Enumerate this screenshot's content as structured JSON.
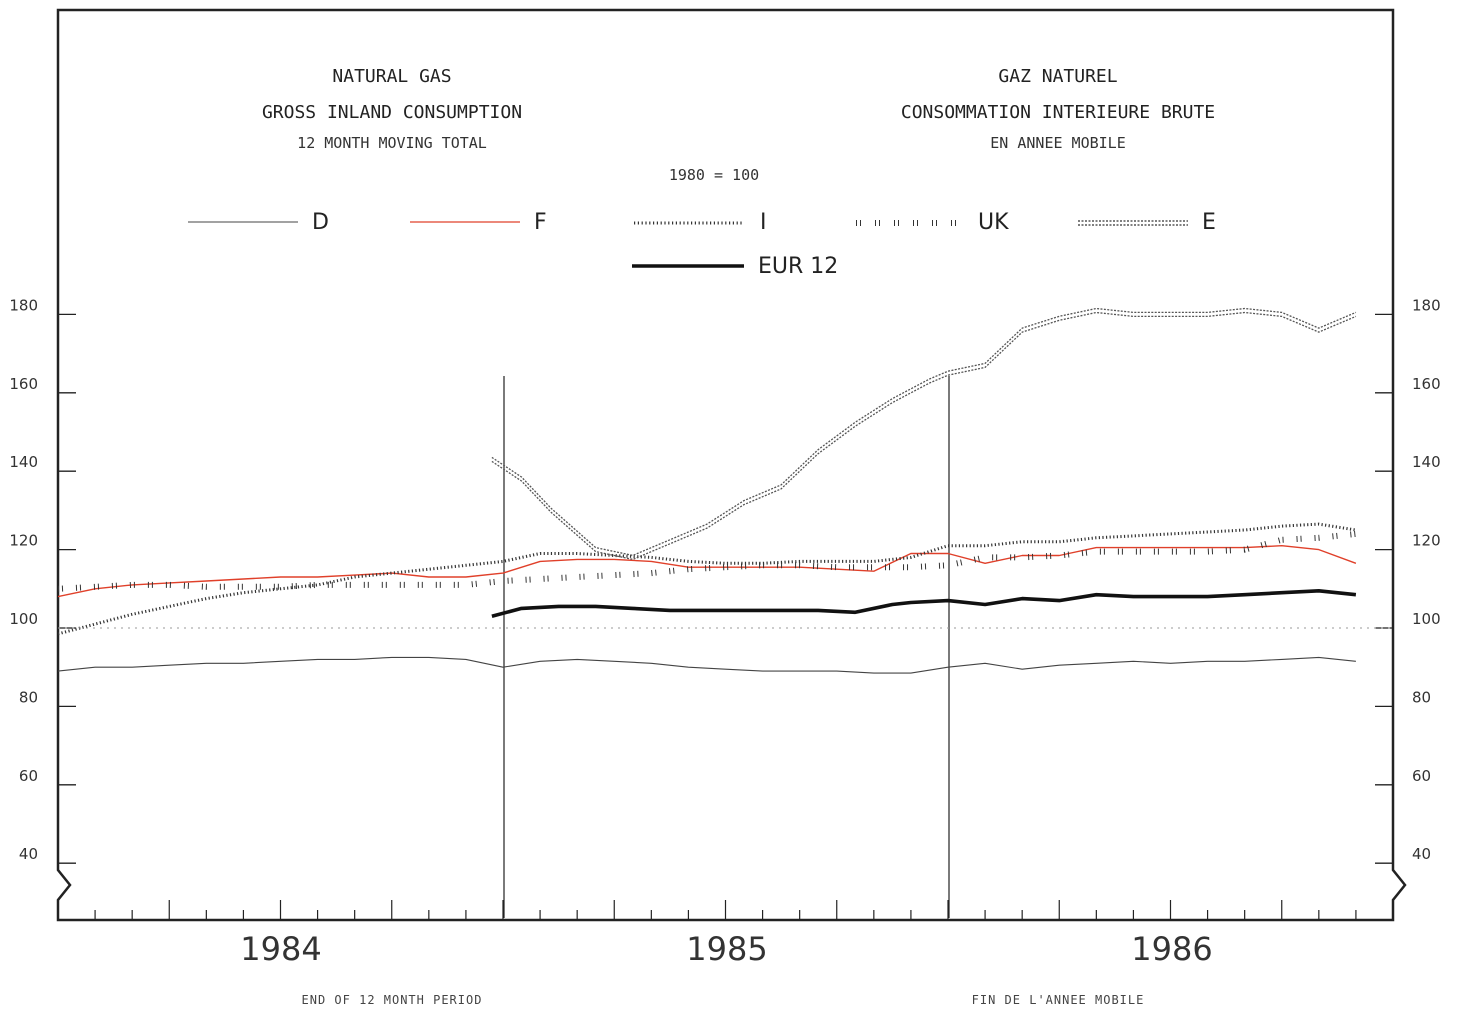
{
  "titles": {
    "en_line1": "NATURAL GAS",
    "en_line2": "GROSS INLAND CONSUMPTION",
    "en_line3": "12 MONTH MOVING TOTAL",
    "fr_line1": "GAZ NATUREL",
    "fr_line2": "CONSOMMATION INTERIEURE BRUTE",
    "fr_line3": "EN ANNEE MOBILE",
    "base": "1980 = 100"
  },
  "footer": {
    "en": "END OF 12 MONTH PERIOD",
    "fr": "FIN DE L'ANNEE MOBILE"
  },
  "colors": {
    "D": "#444444",
    "F": "#e0402a",
    "I": "#333333",
    "UK": "#333333",
    "E": "#555555",
    "EUR12": "#111111",
    "axis": "#222222",
    "grid": "#bbbbbb"
  },
  "chart_data": {
    "type": "line",
    "x_unit": "month index (0 = Jan 1984, 35 = Dec 1986)",
    "xlim": [
      0,
      36
    ],
    "ylim": [
      40,
      180
    ],
    "yticks": [
      40,
      60,
      80,
      100,
      120,
      140,
      160,
      180
    ],
    "year_labels": [
      "1984",
      "1985",
      "1986"
    ],
    "grid": false,
    "legend_placement": "top",
    "series": [
      {
        "name": "D",
        "style": "thin-solid",
        "x": [
          0,
          1,
          2,
          3,
          4,
          5,
          6,
          7,
          8,
          9,
          10,
          11,
          12,
          13,
          14,
          15,
          16,
          17,
          18,
          19,
          20,
          21,
          22,
          23,
          24,
          25,
          26,
          27,
          28,
          29,
          30,
          31,
          32,
          33,
          34,
          35
        ],
        "values": [
          89,
          90,
          90,
          90.5,
          91,
          91,
          91.5,
          92,
          92,
          92.5,
          92.5,
          92,
          90,
          91.5,
          92,
          91.5,
          91,
          90,
          89.5,
          89,
          89,
          89,
          88.5,
          88.5,
          90,
          91,
          89.5,
          90.5,
          91,
          91.5,
          91,
          91.5,
          91.5,
          92,
          92.5,
          91.5
        ]
      },
      {
        "name": "F",
        "style": "thin-solid",
        "x": [
          0,
          1,
          2,
          3,
          4,
          5,
          6,
          7,
          8,
          9,
          10,
          11,
          12,
          13,
          14,
          15,
          16,
          17,
          18,
          19,
          20,
          21,
          22,
          23,
          24,
          25,
          26,
          27,
          28,
          29,
          30,
          31,
          32,
          33,
          34,
          35
        ],
        "values": [
          108,
          110,
          111,
          111.5,
          112,
          112.5,
          113,
          113,
          113.5,
          114,
          113,
          113,
          114,
          117,
          117.5,
          117.5,
          117,
          115.5,
          115.5,
          115.5,
          115.5,
          115,
          114.5,
          119,
          119,
          116.5,
          118.5,
          118.5,
          120.5,
          120.5,
          120.5,
          120.5,
          120.5,
          121,
          120,
          116.5
        ]
      },
      {
        "name": "I",
        "style": "fine-dotted",
        "x": [
          0,
          1,
          2,
          3,
          4,
          5,
          6,
          7,
          8,
          9,
          10,
          11,
          12,
          13,
          14,
          15,
          16,
          17,
          18,
          19,
          20,
          21,
          22,
          23,
          24,
          25,
          26,
          27,
          28,
          29,
          30,
          31,
          32,
          33,
          34,
          35
        ],
        "values": [
          98.5,
          101,
          103.5,
          105.5,
          107.5,
          109,
          110,
          111,
          113,
          114,
          115,
          116,
          117,
          119,
          119,
          118.5,
          118,
          117,
          116.5,
          116.5,
          117,
          117,
          117,
          118,
          121,
          121,
          122,
          122,
          123,
          123.5,
          124,
          124.5,
          125,
          126,
          126.5,
          125
        ]
      },
      {
        "name": "UK",
        "style": "sparse-crosses",
        "x": [
          0,
          1,
          2,
          3,
          4,
          5,
          6,
          7,
          8,
          9,
          10,
          11,
          12,
          13,
          14,
          15,
          16,
          17,
          18,
          19,
          20,
          21,
          22,
          23,
          24,
          25,
          26,
          27,
          28,
          29,
          30,
          31,
          32,
          33,
          34,
          35
        ],
        "values": [
          110,
          110.5,
          111,
          111,
          110.5,
          110.5,
          110.5,
          111,
          111,
          111,
          111,
          111,
          112,
          112.5,
          113,
          113.5,
          114,
          115,
          115.5,
          116,
          116,
          115.5,
          115.5,
          115.5,
          116,
          118,
          118,
          118.5,
          119.5,
          119.5,
          119.5,
          119.5,
          120,
          122.5,
          123,
          124
        ]
      },
      {
        "name": "E",
        "style": "double-dotted",
        "x": [
          11.7,
          12.5,
          13.3,
          14.5,
          15.5,
          16.5,
          17.5,
          18.5,
          19.5,
          20.5,
          21.5,
          22.5,
          23.5,
          24,
          25,
          26,
          27,
          28,
          29,
          30,
          31,
          32,
          33,
          34,
          35
        ],
        "values": [
          143,
          138,
          130,
          120,
          118,
          122,
          126,
          132,
          136,
          145,
          152,
          158,
          163,
          165,
          167,
          176,
          179,
          181,
          180,
          180,
          180,
          181,
          180,
          176,
          180
        ]
      },
      {
        "name": "EUR 12",
        "style": "thick-solid",
        "x": [
          11.7,
          12.5,
          13.5,
          14.5,
          15.5,
          16.5,
          17.5,
          18.5,
          19.5,
          20.5,
          21.5,
          22.5,
          23,
          24,
          25,
          26,
          27,
          28,
          29,
          30,
          31,
          32,
          33,
          34,
          35
        ],
        "values": [
          103,
          105,
          105.5,
          105.5,
          105,
          104.5,
          104.5,
          104.5,
          104.5,
          104.5,
          104,
          106,
          106.5,
          107,
          106,
          107.5,
          107,
          108.5,
          108,
          108,
          108,
          108.5,
          109,
          109.5,
          108.5
        ]
      },
      {
        "name": "base-100",
        "style": "faint-dotted",
        "x": [
          0,
          36
        ],
        "values": [
          100,
          100
        ]
      }
    ],
    "year_markers": [
      12,
      24
    ]
  },
  "legend": [
    {
      "key": "D",
      "label": "D"
    },
    {
      "key": "F",
      "label": "F"
    },
    {
      "key": "I",
      "label": "I"
    },
    {
      "key": "UK",
      "label": "UK"
    },
    {
      "key": "E",
      "label": "E"
    },
    {
      "key": "EUR12",
      "label": "EUR 12"
    }
  ]
}
